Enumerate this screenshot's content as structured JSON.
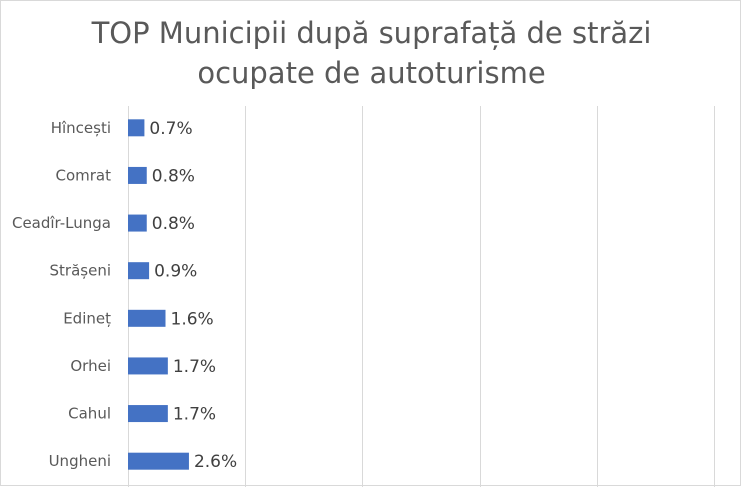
{
  "chart_data": {
    "type": "bar",
    "orientation": "horizontal",
    "title_lines": [
      "TOP Municipii după suprafață de străzi",
      "ocupate de autoturisme"
    ],
    "categories": [
      "Hîncești",
      "Comrat",
      "Ceadîr-Lunga",
      "Strășeni",
      "Edineț",
      "Orhei",
      "Cahul",
      "Ungheni"
    ],
    "values": [
      0.7,
      0.8,
      0.8,
      0.9,
      1.6,
      1.7,
      1.7,
      2.6
    ],
    "data_labels": [
      "0.7%",
      "0.8%",
      "0.8%",
      "0.9%",
      "1.6%",
      "1.7%",
      "1.7%",
      "2.6%"
    ],
    "xlim": [
      0,
      25
    ],
    "grid": "vertical",
    "legend": "none",
    "colors": {
      "bar": "#4472c4",
      "grid": "#d9d9d9",
      "text": "#595959"
    }
  }
}
